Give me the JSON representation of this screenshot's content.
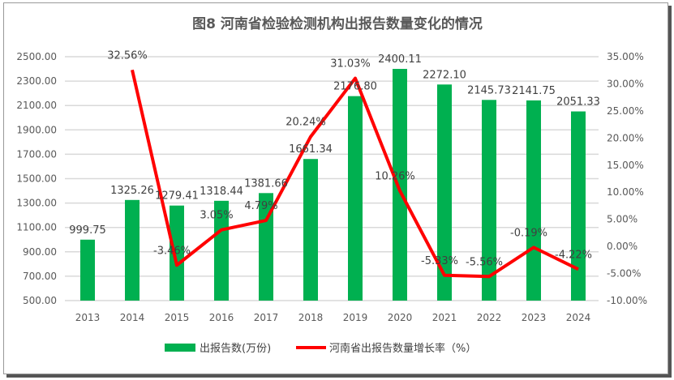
{
  "chart_data": {
    "type": "bar+line",
    "title": "图8  河南省检验检测机构出报告数量变化的情况",
    "categories": [
      "2013",
      "2014",
      "2015",
      "2016",
      "2017",
      "2018",
      "2019",
      "2020",
      "2021",
      "2022",
      "2023",
      "2024"
    ],
    "series": [
      {
        "name": "出报告数(万份)",
        "type": "bar",
        "axis": "left",
        "color": "#00B050",
        "values": [
          999.75,
          1325.26,
          1279.41,
          1318.44,
          1381.66,
          1661.34,
          2176.8,
          2400.11,
          2272.1,
          2145.73,
          2141.75,
          2051.33
        ],
        "labels": [
          "999.75",
          "1325.26",
          "1279.41",
          "1318.44",
          "1381.66",
          "1661.34",
          "2176.80",
          "2400.11",
          "2272.10",
          "2145.73",
          "2141.75",
          "2051.33"
        ]
      },
      {
        "name": "河南省出报告数量增长率（%）",
        "type": "line",
        "axis": "right",
        "color": "#FF0000",
        "values": [
          null,
          32.56,
          -3.46,
          3.05,
          4.79,
          20.24,
          31.03,
          10.26,
          -5.33,
          -5.56,
          -0.19,
          -4.22
        ],
        "labels": [
          "",
          "32.56%",
          "-3.46%",
          "3.05%",
          "4.79%",
          "20.24%",
          "31.03%",
          "10.26%",
          "-5.33%",
          "-5.56%",
          "-0.19%",
          "-4.22%"
        ]
      }
    ],
    "left_axis": {
      "min": 500,
      "max": 2500,
      "ticks": [
        "500.00",
        "700.00",
        "900.00",
        "1100.00",
        "1300.00",
        "1500.00",
        "1700.00",
        "1900.00",
        "2100.00",
        "2300.00",
        "2500.00"
      ]
    },
    "right_axis": {
      "min": -10,
      "max": 35,
      "ticks": [
        "-10.00%",
        "-5.00%",
        "0.00%",
        "5.00%",
        "10.00%",
        "15.00%",
        "20.00%",
        "25.00%",
        "30.00%",
        "35.00%"
      ]
    },
    "grid": true,
    "legend": "bottom"
  }
}
